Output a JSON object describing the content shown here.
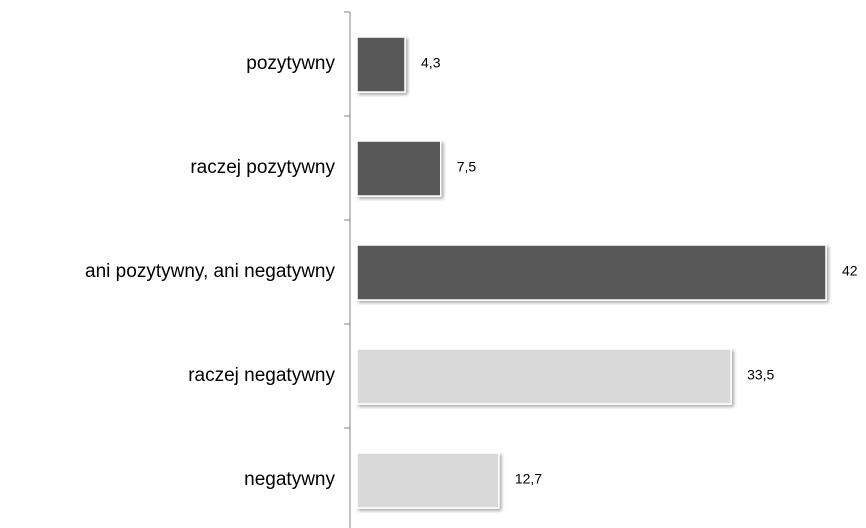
{
  "chart_data": {
    "type": "barh",
    "categories": [
      "pozytywny",
      "raczej pozytywny",
      "ani pozytywny, ani negatywny",
      "raczej negatywny",
      "negatywny"
    ],
    "values": [
      4.3,
      7.5,
      42,
      33.5,
      12.7
    ],
    "value_labels": [
      "4,3",
      "7,5",
      "42",
      "33,5",
      "12,7"
    ],
    "colors": [
      "#595959",
      "#595959",
      "#595959",
      "#d9d9d9",
      "#d9d9d9"
    ]
  }
}
